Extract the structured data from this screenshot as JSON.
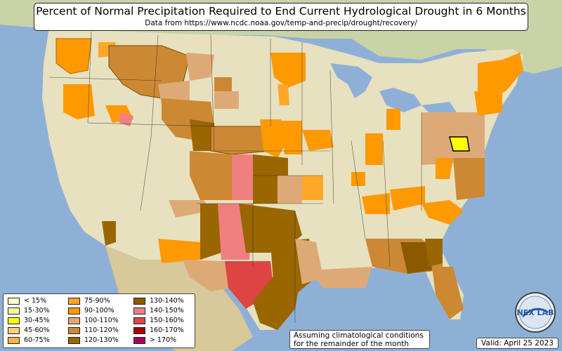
{
  "title": "Percent of Normal Precipitation Required to End Current Hydrological Drought in 6 Months",
  "subtitle": "Data from https://www.ncdc.noaa.gov/temp-and-precip/drought/recovery/",
  "legend": [
    {
      "label": "< 15%",
      "color": "#ffffcc"
    },
    {
      "label": "15-30%",
      "color": "#ffff99"
    },
    {
      "label": "30-45%",
      "color": "#ffff00"
    },
    {
      "label": "45-60%",
      "color": "#ffcc80"
    },
    {
      "label": "60-75%",
      "color": "#ffb347"
    },
    {
      "label": "75-90%",
      "color": "#ffa726"
    },
    {
      "label": "90-100%",
      "color": "#ff9900"
    },
    {
      "label": "100-110%",
      "color": "#ddaa77"
    },
    {
      "label": "110-120%",
      "color": "#cc8833"
    },
    {
      "label": "120-130%",
      "color": "#996600"
    },
    {
      "label": "130-140%",
      "color": "#8b5a00"
    },
    {
      "label": "140-150%",
      "color": "#f08080"
    },
    {
      "label": "150-160%",
      "color": "#dd4444"
    },
    {
      "label": "160-170%",
      "color": "#aa0000"
    },
    {
      "label": "> 170%",
      "color": "#aa0055"
    }
  ],
  "note": {
    "line1": "Assuming climatological conditions",
    "line2": "for the remainder of the month"
  },
  "valid": "Valid: April 25 2023",
  "logo_text": "NEX LAB"
}
